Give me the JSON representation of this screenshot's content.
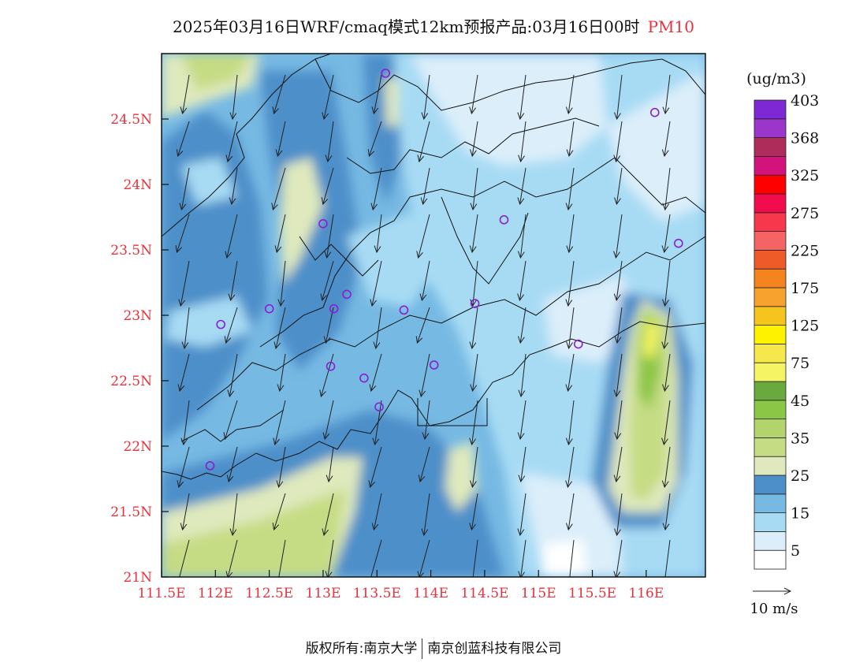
{
  "title": {
    "main": "2025年03月16日WRF/cmaq模式12km预报产品:03月16日00时",
    "variable": "PM10"
  },
  "axes": {
    "lon_labels": [
      "111.5E",
      "112E",
      "112.5E",
      "113E",
      "113.5E",
      "114E",
      "114.5E",
      "115E",
      "115.5E",
      "116E"
    ],
    "lon_values": [
      111.5,
      112,
      112.5,
      113,
      113.5,
      114,
      114.5,
      115,
      115.5,
      116
    ],
    "lat_labels": [
      "21N",
      "21.5N",
      "22N",
      "22.5N",
      "23N",
      "23.5N",
      "24N",
      "24.5N"
    ],
    "lat_values": [
      21,
      21.5,
      22,
      22.5,
      23,
      23.5,
      24,
      24.5
    ],
    "lon_range": [
      111.5,
      116.55
    ],
    "lat_range": [
      21,
      25
    ]
  },
  "colorbar": {
    "unit": "(ug/m3)",
    "labels": [
      "5",
      "15",
      "25",
      "35",
      "45",
      "75",
      "125",
      "175",
      "225",
      "275",
      "325",
      "368",
      "403"
    ],
    "colors": [
      "#ffffff",
      "#dbeefa",
      "#a7dbf4",
      "#76b9e3",
      "#4d8fc9",
      "#dfe9bd",
      "#c6dc84",
      "#b3d46d",
      "#8cc646",
      "#6aa93d",
      "#f4f465",
      "#f5e84d",
      "#fff200",
      "#f5c41d",
      "#f7a22e",
      "#f58320",
      "#ee5a28",
      "#f56464",
      "#f7374b",
      "#f20c4b",
      "#ff0000",
      "#d3137b",
      "#ad2c59",
      "#9a36c9",
      "#7e27d5"
    ]
  },
  "wind_legend": {
    "label": "10 m/s"
  },
  "stations": [
    {
      "lon": 113.58,
      "lat": 24.85
    },
    {
      "lon": 116.08,
      "lat": 24.55
    },
    {
      "lon": 113.0,
      "lat": 23.7
    },
    {
      "lon": 114.68,
      "lat": 23.73
    },
    {
      "lon": 116.3,
      "lat": 23.55
    },
    {
      "lon": 112.5,
      "lat": 23.05
    },
    {
      "lon": 113.1,
      "lat": 23.05
    },
    {
      "lon": 113.22,
      "lat": 23.16
    },
    {
      "lon": 113.75,
      "lat": 23.04
    },
    {
      "lon": 114.41,
      "lat": 23.09
    },
    {
      "lon": 112.05,
      "lat": 22.93
    },
    {
      "lon": 113.07,
      "lat": 22.61
    },
    {
      "lon": 113.38,
      "lat": 22.52
    },
    {
      "lon": 114.03,
      "lat": 22.62
    },
    {
      "lon": 113.52,
      "lat": 22.3
    },
    {
      "lon": 115.37,
      "lat": 22.78
    },
    {
      "lon": 111.95,
      "lat": 21.85
    }
  ],
  "colors": {
    "label_red": "#e8323c",
    "station": "#8a1fd0",
    "coast": "#111111"
  },
  "footer": {
    "left": "版权所有:南京大学",
    "right": "南京创蓝科技有限公司"
  }
}
